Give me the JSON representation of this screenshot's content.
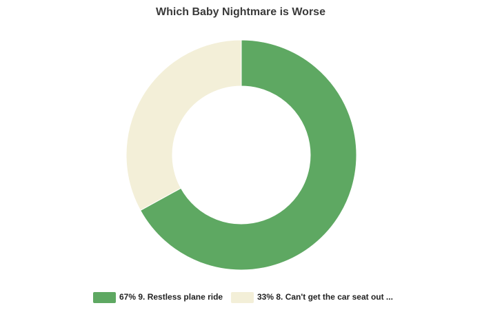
{
  "chart_data": {
    "type": "donut",
    "title": "Which Baby Nightmare is Worse",
    "categories": [
      "9. Restless plane ride",
      "8. Can't get the car seat out ..."
    ],
    "values": [
      67,
      33
    ],
    "value_labels": [
      "67%",
      "33%"
    ],
    "colors": [
      "#5ea862",
      "#f3efd8"
    ],
    "legend": "bottom"
  }
}
